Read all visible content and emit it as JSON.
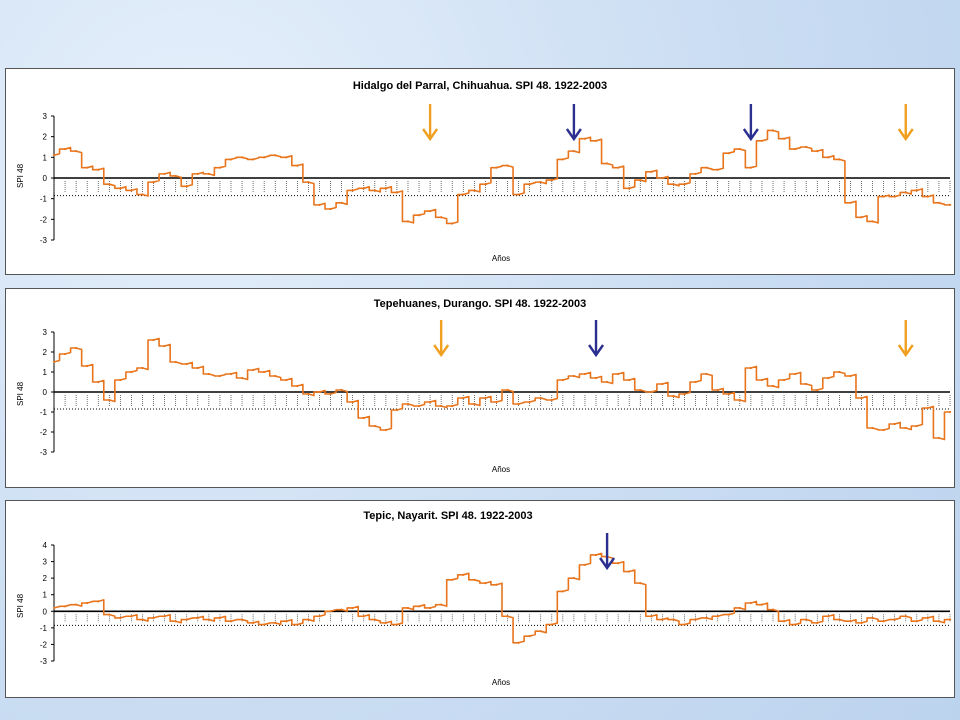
{
  "colors": {
    "series": "#e8741c",
    "arrow_blue": "#2b2f8f",
    "arrow_orange": "#f0a020",
    "axis": "#000000"
  },
  "chart_data": [
    {
      "type": "line",
      "title": "Hidalgo del Parral, Chihuahua. SPI 48. 1922-2003",
      "xlabel": "Años",
      "ylabel": "SPI 48",
      "ylim": [
        -3,
        3
      ],
      "yticks": [
        3,
        2,
        1,
        0,
        -1,
        -2,
        -3
      ],
      "xlim": [
        1922,
        2003
      ],
      "x": [
        1922,
        1923,
        1924,
        1925,
        1926,
        1927,
        1928,
        1929,
        1930,
        1931,
        1932,
        1933,
        1934,
        1935,
        1936,
        1937,
        1938,
        1939,
        1940,
        1941,
        1942,
        1943,
        1944,
        1945,
        1946,
        1947,
        1948,
        1949,
        1950,
        1951,
        1952,
        1953,
        1954,
        1955,
        1956,
        1957,
        1958,
        1959,
        1960,
        1961,
        1962,
        1963,
        1964,
        1965,
        1966,
        1967,
        1968,
        1969,
        1970,
        1971,
        1972,
        1973,
        1974,
        1975,
        1976,
        1977,
        1978,
        1979,
        1980,
        1981,
        1982,
        1983,
        1984,
        1985,
        1986,
        1987,
        1988,
        1989,
        1990,
        1991,
        1992,
        1993,
        1994,
        1995,
        1996,
        1997,
        1998,
        1999,
        2000,
        2001,
        2002,
        2003
      ],
      "values": [
        1.1,
        1.4,
        1.3,
        0.5,
        0.4,
        -0.3,
        -0.5,
        -0.6,
        -0.8,
        -0.2,
        0.2,
        0.1,
        -0.4,
        0.2,
        0.2,
        0.5,
        0.9,
        1.0,
        0.9,
        1.0,
        1.1,
        1.0,
        0.6,
        -0.2,
        -1.3,
        -1.5,
        -1.2,
        -0.6,
        -0.5,
        -0.6,
        -0.5,
        -0.7,
        -2.1,
        -1.8,
        -1.6,
        -1.9,
        -2.2,
        -0.8,
        -0.6,
        -0.3,
        0.5,
        0.6,
        -0.8,
        -0.3,
        -0.2,
        -0.1,
        0.9,
        1.3,
        1.9,
        1.8,
        0.7,
        0.5,
        -0.5,
        -0.1,
        0.3,
        0.0,
        -0.3,
        -0.3,
        0.2,
        0.5,
        0.4,
        1.2,
        1.4,
        0.5,
        1.8,
        2.3,
        1.9,
        1.4,
        1.5,
        1.3,
        1.0,
        0.9,
        -1.2,
        -1.9,
        -2.1,
        -0.9,
        -0.9,
        -0.7,
        -0.6,
        -0.9,
        -1.2,
        -1.3
      ],
      "markers": [
        {
          "year": 1956,
          "color": "orange"
        },
        {
          "year": 1969,
          "color": "blue"
        },
        {
          "year": 1985,
          "color": "blue"
        },
        {
          "year": 1999,
          "color": "orange"
        }
      ]
    },
    {
      "type": "line",
      "title": "Tepehuanes, Durango. SPI 48. 1922-2003",
      "xlabel": "Años",
      "ylabel": "SPI 48",
      "ylim": [
        -3,
        3
      ],
      "yticks": [
        3,
        2,
        1,
        0,
        -1,
        -2,
        -3
      ],
      "xlim": [
        1922,
        2003
      ],
      "x": [
        1922,
        1923,
        1924,
        1925,
        1926,
        1927,
        1928,
        1929,
        1930,
        1931,
        1932,
        1933,
        1934,
        1935,
        1936,
        1937,
        1938,
        1939,
        1940,
        1941,
        1942,
        1943,
        1944,
        1945,
        1946,
        1947,
        1948,
        1949,
        1950,
        1951,
        1952,
        1953,
        1954,
        1955,
        1956,
        1957,
        1958,
        1959,
        1960,
        1961,
        1962,
        1963,
        1964,
        1965,
        1966,
        1967,
        1968,
        1969,
        1970,
        1971,
        1972,
        1973,
        1974,
        1975,
        1976,
        1977,
        1978,
        1979,
        1980,
        1981,
        1982,
        1983,
        1984,
        1985,
        1986,
        1987,
        1988,
        1989,
        1990,
        1991,
        1992,
        1993,
        1994,
        1995,
        1996,
        1997,
        1998,
        1999,
        2000,
        2001,
        2002,
        2003
      ],
      "values": [
        1.5,
        1.9,
        2.2,
        1.3,
        0.5,
        -0.4,
        0.6,
        1.0,
        1.2,
        2.6,
        2.3,
        1.5,
        1.4,
        1.2,
        0.9,
        0.8,
        0.9,
        0.7,
        1.1,
        1.0,
        0.8,
        0.6,
        0.3,
        -0.1,
        0.0,
        -0.1,
        0.1,
        -0.5,
        -1.3,
        -1.7,
        -1.9,
        -0.9,
        -0.6,
        -0.7,
        -0.5,
        -0.7,
        -0.7,
        -0.3,
        -0.6,
        -0.3,
        -0.5,
        0.1,
        -0.6,
        -0.5,
        -0.3,
        -0.4,
        0.6,
        0.8,
        0.9,
        0.7,
        0.5,
        0.9,
        0.6,
        0.1,
        0.0,
        0.4,
        -0.2,
        -0.1,
        0.5,
        0.9,
        0.1,
        -0.1,
        -0.4,
        1.2,
        0.6,
        0.3,
        0.6,
        0.9,
        0.4,
        0.1,
        0.7,
        1.0,
        0.8,
        -0.3,
        -1.8,
        -1.9,
        -1.6,
        -1.8,
        -1.7,
        -0.8,
        -2.3,
        -1.0
      ],
      "markers": [
        {
          "year": 1957,
          "color": "orange"
        },
        {
          "year": 1971,
          "color": "blue"
        },
        {
          "year": 1999,
          "color": "orange"
        }
      ]
    },
    {
      "type": "line",
      "title": "Tepic, Nayarit. SPI 48. 1922-2003",
      "xlabel": "Años",
      "ylabel": "SPI 48",
      "ylim": [
        -3,
        4
      ],
      "yticks": [
        4,
        3,
        2,
        1,
        0,
        -1,
        -2,
        -3
      ],
      "xlim": [
        1922,
        2003
      ],
      "x": [
        1922,
        1923,
        1924,
        1925,
        1926,
        1927,
        1928,
        1929,
        1930,
        1931,
        1932,
        1933,
        1934,
        1935,
        1936,
        1937,
        1938,
        1939,
        1940,
        1941,
        1942,
        1943,
        1944,
        1945,
        1946,
        1947,
        1948,
        1949,
        1950,
        1951,
        1952,
        1953,
        1954,
        1955,
        1956,
        1957,
        1958,
        1959,
        1960,
        1961,
        1962,
        1963,
        1964,
        1965,
        1966,
        1967,
        1968,
        1969,
        1970,
        1971,
        1972,
        1973,
        1974,
        1975,
        1976,
        1977,
        1978,
        1979,
        1980,
        1981,
        1982,
        1983,
        1984,
        1985,
        1986,
        1987,
        1988,
        1989,
        1990,
        1991,
        1992,
        1993,
        1994,
        1995,
        1996,
        1997,
        1998,
        1999,
        2000,
        2001,
        2002,
        2003
      ],
      "values": [
        0.2,
        0.3,
        0.4,
        0.5,
        0.6,
        -0.2,
        -0.4,
        -0.3,
        -0.5,
        -0.4,
        -0.3,
        -0.6,
        -0.5,
        -0.4,
        -0.5,
        -0.4,
        -0.6,
        -0.5,
        -0.7,
        -0.8,
        -0.7,
        -0.6,
        -0.8,
        -0.5,
        -0.3,
        0.0,
        0.1,
        0.2,
        -0.3,
        -0.5,
        -0.7,
        -0.8,
        0.2,
        0.3,
        0.2,
        0.4,
        1.9,
        2.2,
        1.9,
        1.7,
        1.6,
        -0.3,
        -1.9,
        -1.5,
        -1.2,
        -0.8,
        1.2,
        2.0,
        2.8,
        3.4,
        3.3,
        2.9,
        2.4,
        1.7,
        -0.3,
        -0.5,
        -0.5,
        -0.8,
        -0.5,
        -0.4,
        -0.3,
        -0.2,
        0.2,
        0.5,
        0.4,
        0.1,
        -0.6,
        -0.8,
        -0.5,
        -0.7,
        -0.3,
        -0.5,
        -0.6,
        -0.7,
        -0.4,
        -0.6,
        -0.5,
        -0.3,
        -0.6,
        -0.4,
        -0.6,
        -0.5
      ],
      "markers": [
        {
          "year": 1972,
          "color": "blue"
        }
      ]
    }
  ]
}
